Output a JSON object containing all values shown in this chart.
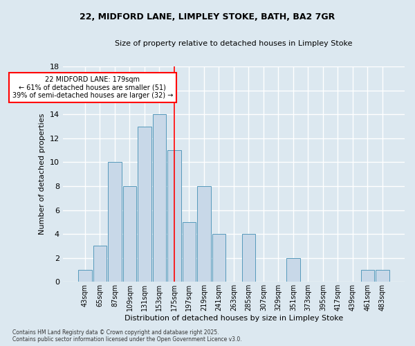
{
  "title_line1": "22, MIDFORD LANE, LIMPLEY STOKE, BATH, BA2 7GR",
  "title_line2": "Size of property relative to detached houses in Limpley Stoke",
  "bar_labels": [
    "43sqm",
    "65sqm",
    "87sqm",
    "109sqm",
    "131sqm",
    "153sqm",
    "175sqm",
    "197sqm",
    "219sqm",
    "241sqm",
    "263sqm",
    "285sqm",
    "307sqm",
    "329sqm",
    "351sqm",
    "373sqm",
    "395sqm",
    "417sqm",
    "439sqm",
    "461sqm",
    "483sqm"
  ],
  "bar_values": [
    1,
    3,
    10,
    8,
    13,
    14,
    11,
    5,
    8,
    4,
    0,
    4,
    0,
    0,
    2,
    0,
    0,
    0,
    0,
    1,
    1
  ],
  "bar_color": "#c8d8e8",
  "bar_edge_color": "#5599bb",
  "vertical_line_x": 6,
  "vertical_line_color": "red",
  "ylabel": "Number of detached properties",
  "xlabel": "Distribution of detached houses by size in Limpley Stoke",
  "ylim": [
    0,
    18
  ],
  "yticks": [
    0,
    2,
    4,
    6,
    8,
    10,
    12,
    14,
    16,
    18
  ],
  "annotation_title": "22 MIDFORD LANE: 179sqm",
  "annotation_line1": "← 61% of detached houses are smaller (51)",
  "annotation_line2": "39% of semi-detached houses are larger (32) →",
  "annotation_box_color": "white",
  "annotation_box_edge": "red",
  "footer_line1": "Contains HM Land Registry data © Crown copyright and database right 2025.",
  "footer_line2": "Contains public sector information licensed under the Open Government Licence v3.0.",
  "bg_color": "#dce8f0",
  "plot_bg_color": "#dce8f0",
  "grid_color": "#ffffff"
}
